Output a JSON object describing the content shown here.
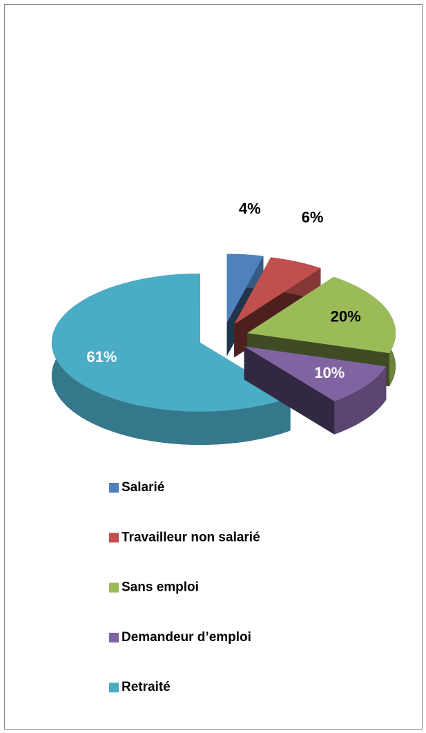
{
  "chart_data": {
    "type": "pie",
    "categories": [
      "Salarié",
      "Travailleur non salarié",
      "Sans emploi",
      "Demandeur d’emploi",
      "Retraité"
    ],
    "values": [
      4,
      6,
      20,
      10,
      61
    ],
    "value_labels": [
      "4%",
      "6%",
      "20%",
      "10%",
      "61%"
    ],
    "colors": [
      "#4f81bd",
      "#c0504d",
      "#9bbb59",
      "#8064a2",
      "#4bacc6"
    ],
    "label_colors": [
      "#000000",
      "#000000",
      "#000000",
      "#ffffff",
      "#ffffff"
    ],
    "legend": "bottom"
  }
}
